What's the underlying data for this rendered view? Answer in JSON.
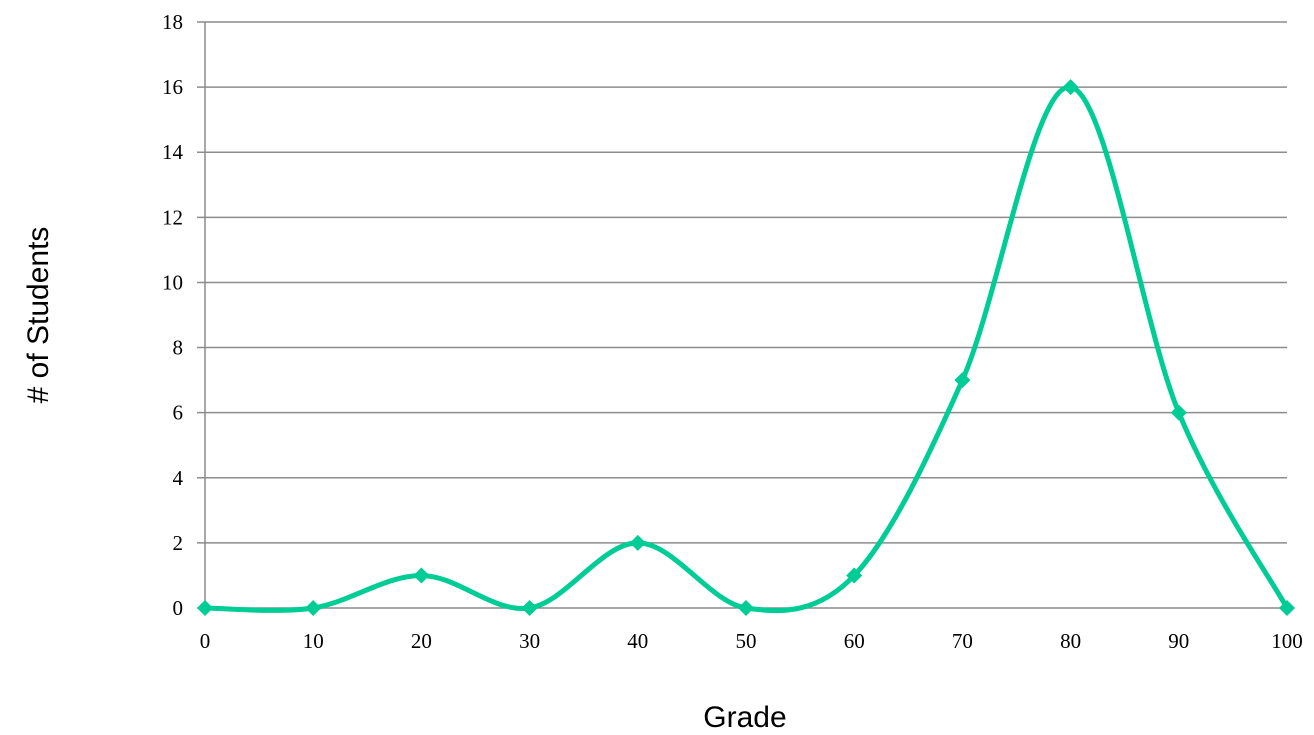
{
  "chart_data": {
    "type": "line",
    "title": "",
    "xlabel": "Grade",
    "ylabel": "# of Students",
    "x": [
      0,
      10,
      20,
      30,
      40,
      50,
      60,
      70,
      80,
      90,
      100
    ],
    "series": [
      {
        "values": [
          0,
          0,
          1,
          0,
          2,
          0,
          1,
          7,
          16,
          6,
          0
        ],
        "color": "#00cc96",
        "marker": "diamond",
        "smooth": true
      }
    ],
    "xlim": [
      0,
      100
    ],
    "ylim": [
      0,
      18
    ],
    "xticks": [
      "0",
      "10",
      "20",
      "30",
      "40",
      "50",
      "60",
      "70",
      "80",
      "90",
      "100"
    ],
    "yticks": [
      "0",
      "2",
      "4",
      "6",
      "8",
      "10",
      "12",
      "14",
      "16",
      "18"
    ],
    "grid": "horizontal",
    "legend": "none"
  }
}
